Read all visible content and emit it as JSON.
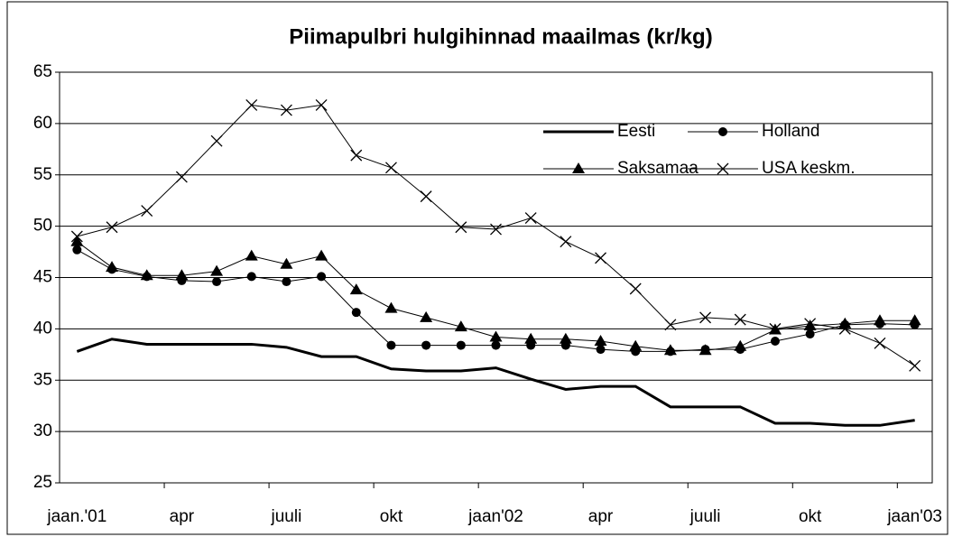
{
  "chart_data": {
    "type": "line",
    "title": "Piimapulbri hulgihinnad maailmas (kr/kg)",
    "categories": [
      "jaan.'01",
      null,
      null,
      "apr",
      null,
      null,
      "juuli",
      null,
      null,
      "okt",
      null,
      null,
      "jaan'02",
      null,
      null,
      "apr",
      null,
      null,
      "juuli",
      null,
      null,
      "okt",
      null,
      null,
      "jaan'03"
    ],
    "series": [
      {
        "name": "Eesti",
        "color": "#000000",
        "marker": "none",
        "line_width": 3,
        "values": [
          37.8,
          39.0,
          38.5,
          38.5,
          38.5,
          38.5,
          38.2,
          37.3,
          37.3,
          36.1,
          35.9,
          35.9,
          36.2,
          35.1,
          34.1,
          34.4,
          34.4,
          32.4,
          32.4,
          32.4,
          30.8,
          30.8,
          30.6,
          30.6,
          31.1
        ]
      },
      {
        "name": "Holland",
        "color": "#000000",
        "marker": "circle",
        "line_width": 1,
        "values": [
          47.7,
          45.8,
          45.1,
          44.7,
          44.6,
          45.1,
          44.6,
          45.1,
          41.6,
          38.4,
          38.4,
          38.4,
          38.4,
          38.4,
          38.4,
          38.0,
          37.8,
          37.8,
          38.0,
          38.0,
          38.8,
          39.5,
          40.4,
          40.5,
          40.4
        ]
      },
      {
        "name": "Saksamaa",
        "color": "#000000",
        "marker": "triangle",
        "line_width": 1,
        "values": [
          48.5,
          46.0,
          45.2,
          45.2,
          45.6,
          47.1,
          46.3,
          47.1,
          43.8,
          42.0,
          41.1,
          40.2,
          39.2,
          39.0,
          39.0,
          38.8,
          38.3,
          37.9,
          37.9,
          38.3,
          39.9,
          40.3,
          40.5,
          40.8,
          40.8
        ]
      },
      {
        "name": "USA keskm.",
        "color": "#000000",
        "marker": "x",
        "line_width": 1,
        "values": [
          49.0,
          49.9,
          51.5,
          54.8,
          58.3,
          61.8,
          61.3,
          61.8,
          56.9,
          55.7,
          52.9,
          49.9,
          49.7,
          50.8,
          48.5,
          46.9,
          43.9,
          40.4,
          41.1,
          40.9,
          40.0,
          40.5,
          40.0,
          38.6,
          36.4
        ]
      }
    ],
    "ylim": [
      25,
      65
    ],
    "yticks": [
      25,
      30,
      35,
      40,
      45,
      50,
      55,
      60,
      65
    ],
    "grid": true,
    "legend": "upper right"
  }
}
